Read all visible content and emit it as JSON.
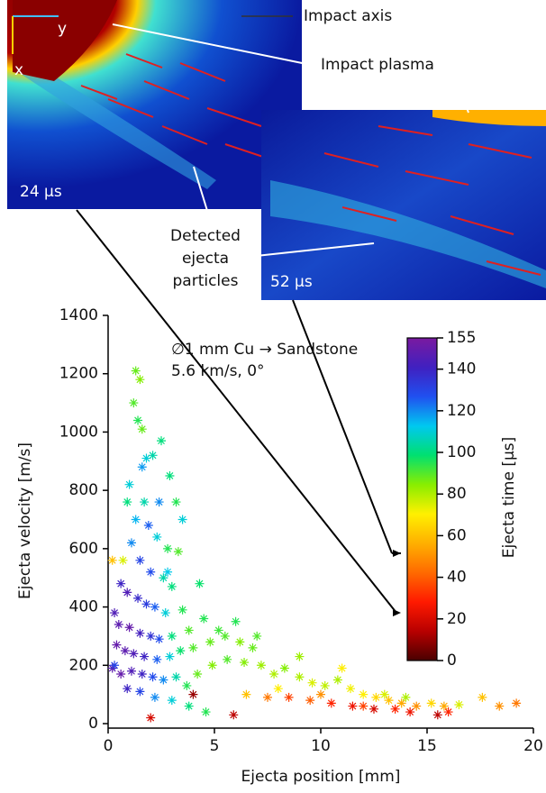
{
  "chart_data": {
    "type": "scatter",
    "xlabel": "Ejecta position [mm]",
    "ylabel": "Ejecta velocity [m/s]",
    "annotations": [
      "∅1 mm Cu → Sandstone",
      "5.6 km/s, 0°"
    ],
    "xlim": [
      0,
      20
    ],
    "xticks": [
      0,
      5,
      10,
      15,
      20
    ],
    "ylim": [
      0,
      1400
    ],
    "yticks": [
      0,
      200,
      400,
      600,
      800,
      1000,
      1200,
      1400
    ],
    "x": [
      1.3,
      1.5,
      1.2,
      1.4,
      1.6,
      1.8,
      1.6,
      2.5,
      2.1,
      2.9,
      3.2,
      1.0,
      0.9,
      1.3,
      1.9,
      2.3,
      2.8,
      3.3,
      1.1,
      0.7,
      0.2,
      1.5,
      2.0,
      2.6,
      3.0,
      0.6,
      0.9,
      1.4,
      1.8,
      2.2,
      2.7,
      3.5,
      0.3,
      0.5,
      1.0,
      1.5,
      2.0,
      2.4,
      3.0,
      3.8,
      4.5,
      5.2,
      0.4,
      0.8,
      1.2,
      1.7,
      2.3,
      2.9,
      3.4,
      4.0,
      4.8,
      5.5,
      6.2,
      6.8,
      0.2,
      0.6,
      1.1,
      1.6,
      2.1,
      2.6,
      3.2,
      3.7,
      4.2,
      4.9,
      5.6,
      6.4,
      7.2,
      7.8,
      8.3,
      9.0,
      9.6,
      10.2,
      10.8,
      11.4,
      12.0,
      12.6,
      13.2,
      13.8,
      14.5,
      15.2,
      15.8,
      16.5,
      17.6,
      18.4,
      19.2,
      0.9,
      1.5,
      2.2,
      3.0,
      3.8,
      4.6,
      5.9,
      4.0,
      2.0,
      6.5,
      7.5,
      8.5,
      9.5,
      10.5,
      11.5,
      12.5,
      13.5,
      14.2,
      15.5,
      16.0,
      11.0,
      9.0,
      7.0,
      6.0,
      8.0,
      10.0,
      12.0,
      13.0,
      14.0,
      3.5,
      2.4,
      0.3,
      4.3,
      2.8,
      1.7
    ],
    "y": [
      1210,
      1180,
      1100,
      1040,
      1010,
      910,
      880,
      970,
      920,
      850,
      760,
      820,
      760,
      700,
      680,
      640,
      600,
      590,
      620,
      560,
      560,
      560,
      520,
      500,
      470,
      480,
      450,
      430,
      410,
      400,
      380,
      390,
      380,
      340,
      330,
      310,
      300,
      290,
      300,
      320,
      360,
      320,
      270,
      250,
      240,
      230,
      220,
      230,
      250,
      260,
      280,
      300,
      280,
      260,
      190,
      170,
      180,
      170,
      160,
      150,
      160,
      130,
      170,
      200,
      220,
      210,
      200,
      170,
      190,
      160,
      140,
      130,
      150,
      120,
      100,
      90,
      80,
      70,
      60,
      70,
      60,
      65,
      90,
      60,
      70,
      120,
      110,
      90,
      80,
      60,
      40,
      30,
      100,
      20,
      100,
      90,
      90,
      80,
      70,
      60,
      50,
      50,
      40,
      30,
      40,
      190,
      230,
      300,
      350,
      120,
      100,
      60,
      100,
      90,
      700,
      760,
      200,
      480,
      520,
      760
    ],
    "time": [
      88,
      85,
      90,
      95,
      88,
      110,
      118,
      100,
      105,
      100,
      95,
      110,
      100,
      115,
      125,
      110,
      95,
      90,
      120,
      75,
      60,
      130,
      128,
      105,
      100,
      140,
      145,
      138,
      132,
      125,
      110,
      95,
      145,
      148,
      150,
      142,
      135,
      128,
      100,
      90,
      95,
      92,
      150,
      148,
      145,
      140,
      125,
      110,
      98,
      90,
      88,
      90,
      85,
      88,
      148,
      150,
      145,
      140,
      128,
      120,
      105,
      95,
      88,
      85,
      90,
      85,
      82,
      80,
      85,
      80,
      75,
      78,
      80,
      72,
      70,
      65,
      60,
      55,
      50,
      65,
      55,
      75,
      60,
      50,
      45,
      140,
      130,
      120,
      110,
      100,
      95,
      15,
      10,
      20,
      60,
      45,
      35,
      40,
      30,
      25,
      20,
      30,
      25,
      15,
      30,
      70,
      82,
      90,
      95,
      70,
      50,
      35,
      75,
      80,
      110,
      120,
      130,
      98,
      112,
      105
    ],
    "colorbar": {
      "label": "Ejecta time [µs]",
      "lim": [
        0,
        155
      ],
      "ticks": [
        0,
        20,
        40,
        60,
        80,
        100,
        120,
        140,
        155
      ],
      "colormap": [
        "#4a0000",
        "#b80000",
        "#ff1a00",
        "#ff6a00",
        "#ffb000",
        "#fff000",
        "#88ee00",
        "#00e070",
        "#00c8f0",
        "#2050f0",
        "#4020c0",
        "#7a1aa0"
      ]
    }
  },
  "images": [
    {
      "time_label": "24 µs",
      "axis_labels": [
        "y",
        "x"
      ]
    },
    {
      "time_label": "52 µs"
    }
  ],
  "callouts": [
    "Impact axis",
    "Impact plasma",
    "Detected",
    "ejecta",
    "particles"
  ]
}
